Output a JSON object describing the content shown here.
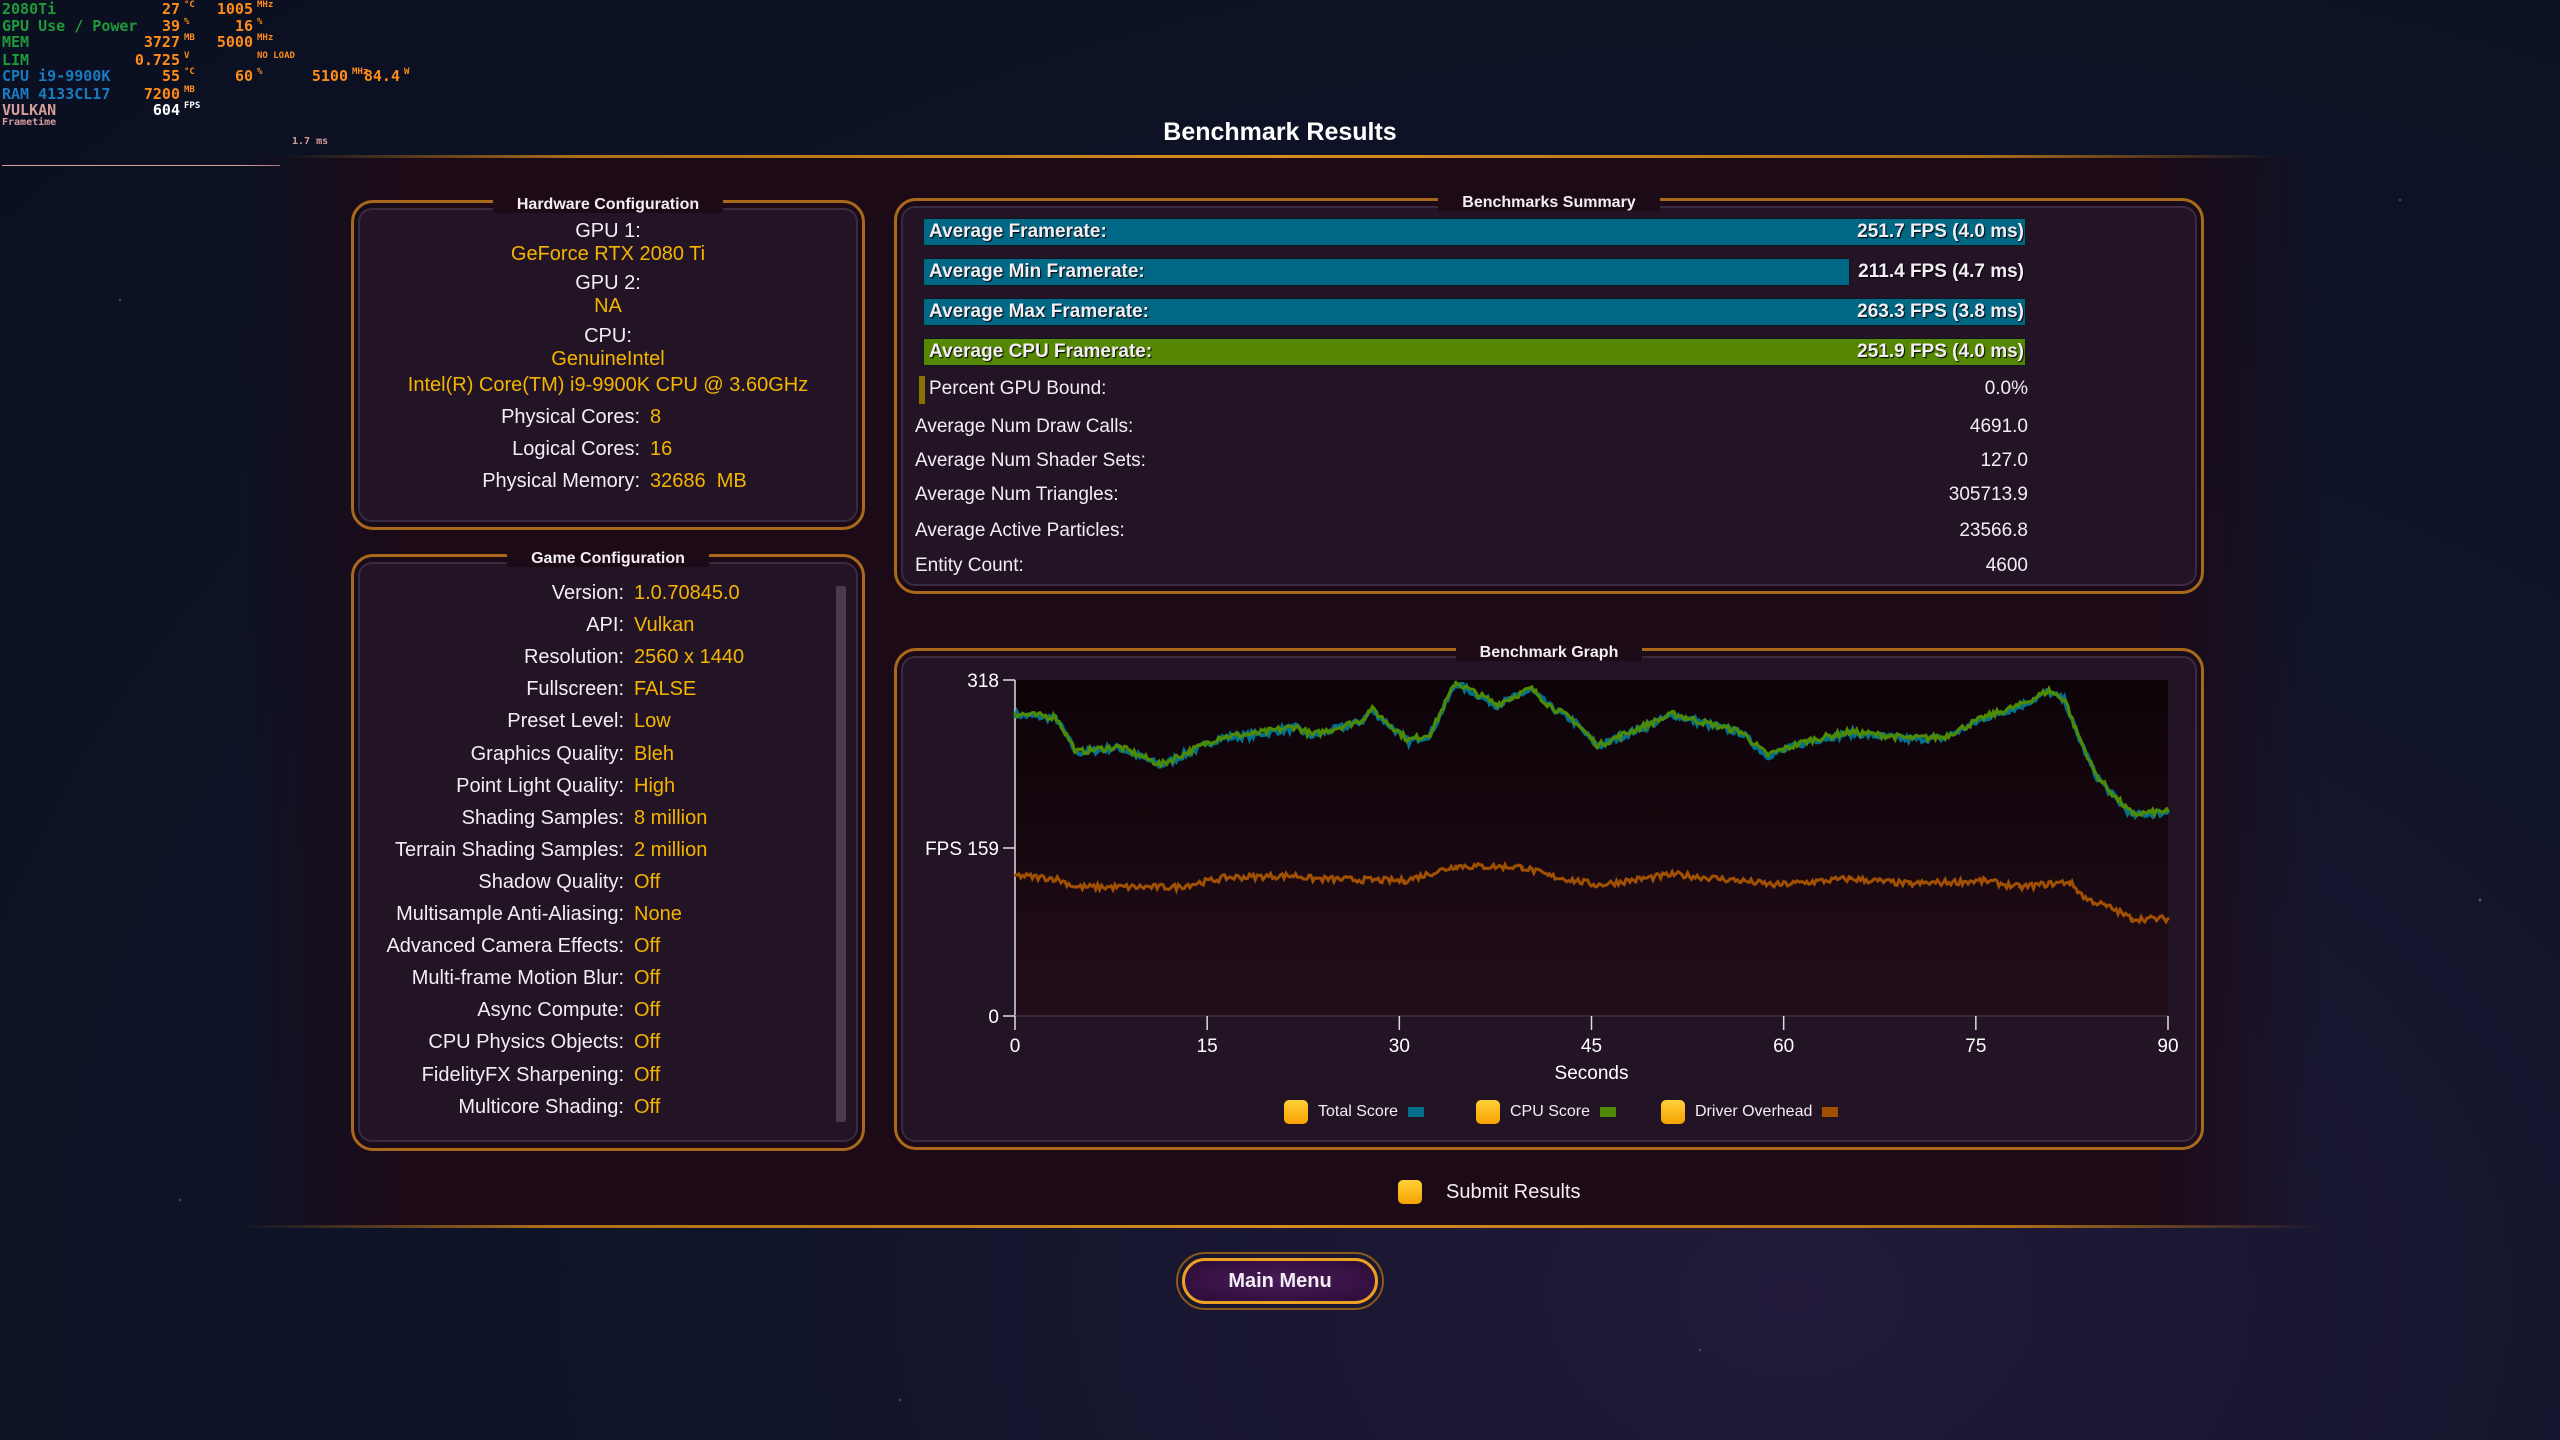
{
  "overlay": {
    "rows": [
      {
        "label": "2080Ti",
        "color": "#1f9a3a",
        "v1": "27",
        "u1": "°C",
        "v2": "1005",
        "u2": "MHz"
      },
      {
        "label": "GPU Use / Power",
        "color": "#1f9a3a",
        "v1": "39",
        "u1": "%",
        "v2": "16",
        "u2": "%"
      },
      {
        "label": "MEM",
        "color": "#1f9a3a",
        "v1": "3727",
        "u1": "MB",
        "v2": "5000",
        "u2": "MHz"
      },
      {
        "label": "LIM",
        "color": "#1f9a3a",
        "v1": "0.725",
        "u1": "V",
        "v2": "",
        "u2": "NO LOAD"
      },
      {
        "label": "CPU i9-9900K",
        "color": "#1a7ac0",
        "v1": "55",
        "u1": "°C",
        "v2": "60",
        "u2": "%",
        "v3": "5100",
        "u3": "MHz",
        "v4": "84.4",
        "u4": "W"
      },
      {
        "label": "RAM 4133CL17",
        "color": "#1a7ac0",
        "v1": "7200",
        "u1": "MB"
      },
      {
        "label": "VULKAN",
        "color": "#d89c9c",
        "v1": "604",
        "u1": "FPS"
      }
    ],
    "frametime_label": "Frametime",
    "frametime_value": "1.7 ms"
  },
  "title": "Benchmark Results",
  "hardware": {
    "title": "Hardware Configuration",
    "gpu1_label": "GPU 1:",
    "gpu1": "GeForce RTX 2080 Ti",
    "gpu2_label": "GPU 2:",
    "gpu2": "NA",
    "cpu_label": "CPU:",
    "cpu_vendor": "GenuineIntel",
    "cpu_name": "Intel(R) Core(TM) i9-9900K CPU @ 3.60GHz",
    "rows": [
      {
        "k": "Physical Cores:",
        "v": "8"
      },
      {
        "k": "Logical Cores:",
        "v": "16"
      },
      {
        "k": "Physical Memory:",
        "v": "32686  MB"
      }
    ]
  },
  "game": {
    "title": "Game Configuration",
    "rows": [
      {
        "k": "Version:",
        "v": "1.0.70845.0"
      },
      {
        "k": "API:",
        "v": "Vulkan"
      },
      {
        "k": "Resolution:",
        "v": "2560 x 1440"
      },
      {
        "k": "Fullscreen:",
        "v": "FALSE"
      },
      {
        "k": "Preset Level:",
        "v": "Low"
      },
      {
        "k": "Graphics Quality:",
        "v": "Bleh"
      },
      {
        "k": "Point Light Quality:",
        "v": "High"
      },
      {
        "k": "Shading Samples:",
        "v": "8 million"
      },
      {
        "k": "Terrain Shading Samples:",
        "v": "2 million"
      },
      {
        "k": "Shadow Quality:",
        "v": "Off"
      },
      {
        "k": "Multisample Anti-Aliasing:",
        "v": "None"
      },
      {
        "k": "Advanced Camera Effects:",
        "v": "Off"
      },
      {
        "k": "Multi-frame Motion Blur:",
        "v": "Off"
      },
      {
        "k": "Async Compute:",
        "v": "Off"
      },
      {
        "k": "CPU Physics Objects:",
        "v": "Off"
      },
      {
        "k": "FidelityFX Sharpening:",
        "v": "Off"
      },
      {
        "k": "Multicore Shading:",
        "v": "Off"
      }
    ]
  },
  "summary": {
    "title": "Benchmarks Summary",
    "bars": [
      {
        "label": "Average Framerate:",
        "value": "251.7 FPS (4.0 ms)",
        "fill": 1.0,
        "color": "#006785"
      },
      {
        "label": "Average Min Framerate:",
        "value": "211.4 FPS (4.7 ms)",
        "fill": 0.84,
        "color": "#006785"
      },
      {
        "label": "Average Max Framerate:",
        "value": "263.3 FPS (3.8 ms)",
        "fill": 1.0,
        "color": "#006785"
      },
      {
        "label": "Average CPU Framerate:",
        "value": "251.9 FPS (4.0 ms)",
        "fill": 1.0,
        "color": "#558800"
      }
    ],
    "gpu_bound": {
      "label": "Percent GPU Bound:",
      "value": "0.0%",
      "color": "#8a7000"
    },
    "rows": [
      {
        "k": "Average Num Draw Calls:",
        "v": "4691.0"
      },
      {
        "k": "Average Num Shader Sets:",
        "v": "127.0"
      },
      {
        "k": "Average Num Triangles:",
        "v": "305713.9"
      },
      {
        "k": "Average Active Particles:",
        "v": "23566.8"
      },
      {
        "k": "Entity Count:",
        "v": "4600"
      }
    ]
  },
  "graph": {
    "title": "Benchmark Graph"
  },
  "chart_data": {
    "type": "line",
    "xlabel": "Seconds",
    "ylabel": "FPS",
    "xlim": [
      0,
      90
    ],
    "ylim": [
      0,
      318
    ],
    "xticks": [
      "0",
      "15",
      "30",
      "45",
      "60",
      "75",
      "90"
    ],
    "yticks": [
      {
        "v": 318,
        "label": "318"
      },
      {
        "v": 159,
        "label": "FPS 159"
      },
      {
        "v": 0,
        "label": "0"
      }
    ],
    "grid": false,
    "legend": "bottom",
    "series": [
      {
        "name": "Total Score",
        "color": "#00708f",
        "x": [
          0,
          3.2,
          4.8,
          8.1,
          11.4,
          16,
          18.6,
          21.9,
          23.2,
          27.1,
          27.8,
          30.7,
          32.4,
          34.4,
          37.6,
          40.3,
          41.6,
          43.6,
          45.5,
          48.2,
          51.4,
          53.1,
          56.7,
          58.7,
          62,
          65.2,
          69.8,
          72.5,
          75.7,
          78.4,
          80.7,
          82,
          82.6,
          84.3,
          85.6,
          87.2,
          90
        ],
        "y": [
          285,
          282,
          249,
          254,
          237,
          263,
          266,
          273,
          265,
          279,
          290,
          260,
          266,
          315,
          294,
          309,
          294,
          279,
          255,
          269,
          285,
          279,
          268,
          246,
          260,
          268,
          262,
          263,
          282,
          293,
          307,
          298,
          276,
          229,
          210,
          190,
          193
        ]
      },
      {
        "name": "CPU Score",
        "color": "#4f8a00",
        "x": [
          0,
          3.2,
          4.8,
          8.1,
          11.4,
          16,
          18.6,
          21.9,
          23.2,
          27.1,
          27.8,
          30.7,
          32.4,
          34.4,
          37.6,
          40.3,
          41.6,
          43.6,
          45.5,
          48.2,
          51.4,
          53.1,
          56.7,
          58.7,
          62,
          65.2,
          69.8,
          72.5,
          75.7,
          78.4,
          80.7,
          82,
          82.6,
          84.3,
          85.6,
          87.2,
          90
        ],
        "y": [
          286,
          283,
          250,
          255,
          238,
          264,
          267,
          274,
          266,
          280,
          291,
          261,
          267,
          316,
          295,
          310,
          295,
          280,
          256,
          270,
          286,
          280,
          269,
          247,
          261,
          269,
          263,
          264,
          283,
          294,
          308,
          299,
          277,
          230,
          211,
          191,
          194
        ]
      },
      {
        "name": "Driver Overhead",
        "color": "#a05000",
        "x": [
          0,
          3.2,
          4.8,
          10.7,
          12.6,
          16.5,
          21.9,
          23.2,
          30.4,
          34.4,
          39.6,
          41.6,
          45.5,
          51.4,
          56.7,
          59.3,
          65.2,
          69.8,
          75.7,
          78.4,
          82.3,
          83.6,
          85.6,
          87.2,
          90
        ],
        "y": [
          133,
          130,
          122,
          122,
          122,
          131,
          133,
          130,
          128,
          142,
          141,
          133,
          124,
          134,
          128,
          124,
          130,
          125,
          128,
          122,
          127,
          111,
          102,
          92,
          92
        ]
      }
    ]
  },
  "submit": {
    "label": "Submit Results"
  },
  "main_menu": {
    "label": "Main Menu"
  }
}
